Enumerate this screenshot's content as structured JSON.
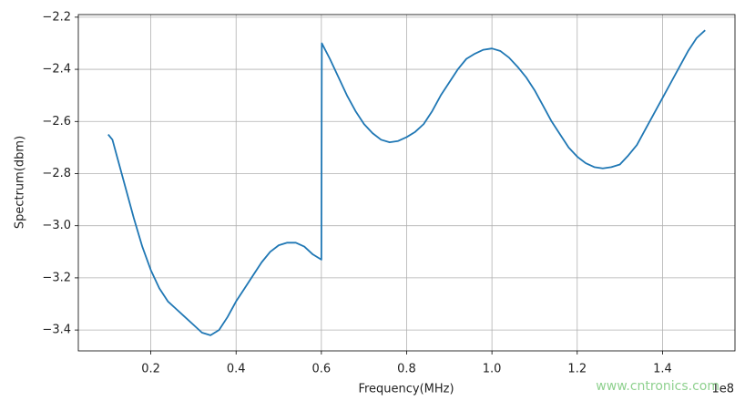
{
  "chart_data": {
    "type": "line",
    "x_label": "Frequency(MHz)",
    "y_label": "Spectrum(dbm)",
    "x_offset_label": "1e8",
    "watermark": "www.cntronics.com",
    "xlim": [
      0.03,
      1.57
    ],
    "ylim": [
      -3.48,
      -2.19
    ],
    "xticks": [
      0.2,
      0.4,
      0.6,
      0.8,
      {
        "value": 1,
        "label": "1.0"
      },
      1.2,
      1.4
    ],
    "yticks": [
      {
        "value": -3.4,
        "label": "−3.4"
      },
      {
        "value": -3.2,
        "label": "−3.2"
      },
      {
        "value": -3,
        "label": "−3.0"
      },
      {
        "value": -2.8,
        "label": "−2.8"
      },
      {
        "value": -2.6,
        "label": "−2.6"
      },
      {
        "value": -2.4,
        "label": "−2.4"
      },
      {
        "value": -2.2,
        "label": "−2.2"
      }
    ],
    "grid": true,
    "x": [
      0.1,
      0.11,
      0.12,
      0.14,
      0.16,
      0.18,
      0.2,
      0.22,
      0.24,
      0.26,
      0.28,
      0.3,
      0.32,
      0.34,
      0.36,
      0.38,
      0.4,
      0.42,
      0.44,
      0.46,
      0.48,
      0.5,
      0.52,
      0.54,
      0.56,
      0.58,
      0.6,
      0.601,
      0.62,
      0.64,
      0.66,
      0.68,
      0.7,
      0.72,
      0.74,
      0.76,
      0.78,
      0.8,
      0.82,
      0.84,
      0.86,
      0.88,
      0.9,
      0.92,
      0.94,
      0.96,
      0.98,
      1.0,
      1.02,
      1.04,
      1.06,
      1.08,
      1.1,
      1.12,
      1.14,
      1.16,
      1.18,
      1.2,
      1.22,
      1.24,
      1.26,
      1.28,
      1.3,
      1.32,
      1.34,
      1.36,
      1.38,
      1.4,
      1.42,
      1.44,
      1.46,
      1.48,
      1.5
    ],
    "series": [
      {
        "color": "#1f77b4",
        "values": [
          -2.65,
          -2.67,
          -2.73,
          -2.85,
          -2.97,
          -3.08,
          -3.17,
          -3.24,
          -3.29,
          -3.32,
          -3.35,
          -3.38,
          -3.41,
          -3.42,
          -3.4,
          -3.35,
          -3.29,
          -3.24,
          -3.19,
          -3.14,
          -3.1,
          -3.075,
          -3.065,
          -3.065,
          -3.08,
          -3.11,
          -3.13,
          -2.3,
          -2.36,
          -2.43,
          -2.5,
          -2.56,
          -2.61,
          -2.645,
          -2.67,
          -2.68,
          -2.675,
          -2.66,
          -2.64,
          -2.61,
          -2.56,
          -2.5,
          -2.45,
          -2.4,
          -2.36,
          -2.34,
          -2.325,
          -2.32,
          -2.33,
          -2.355,
          -2.39,
          -2.43,
          -2.48,
          -2.54,
          -2.6,
          -2.65,
          -2.7,
          -2.735,
          -2.76,
          -2.775,
          -2.78,
          -2.775,
          -2.765,
          -2.73,
          -2.69,
          -2.63,
          -2.57,
          -2.51,
          -2.45,
          -2.39,
          -2.33,
          -2.28,
          -2.25
        ]
      }
    ]
  }
}
